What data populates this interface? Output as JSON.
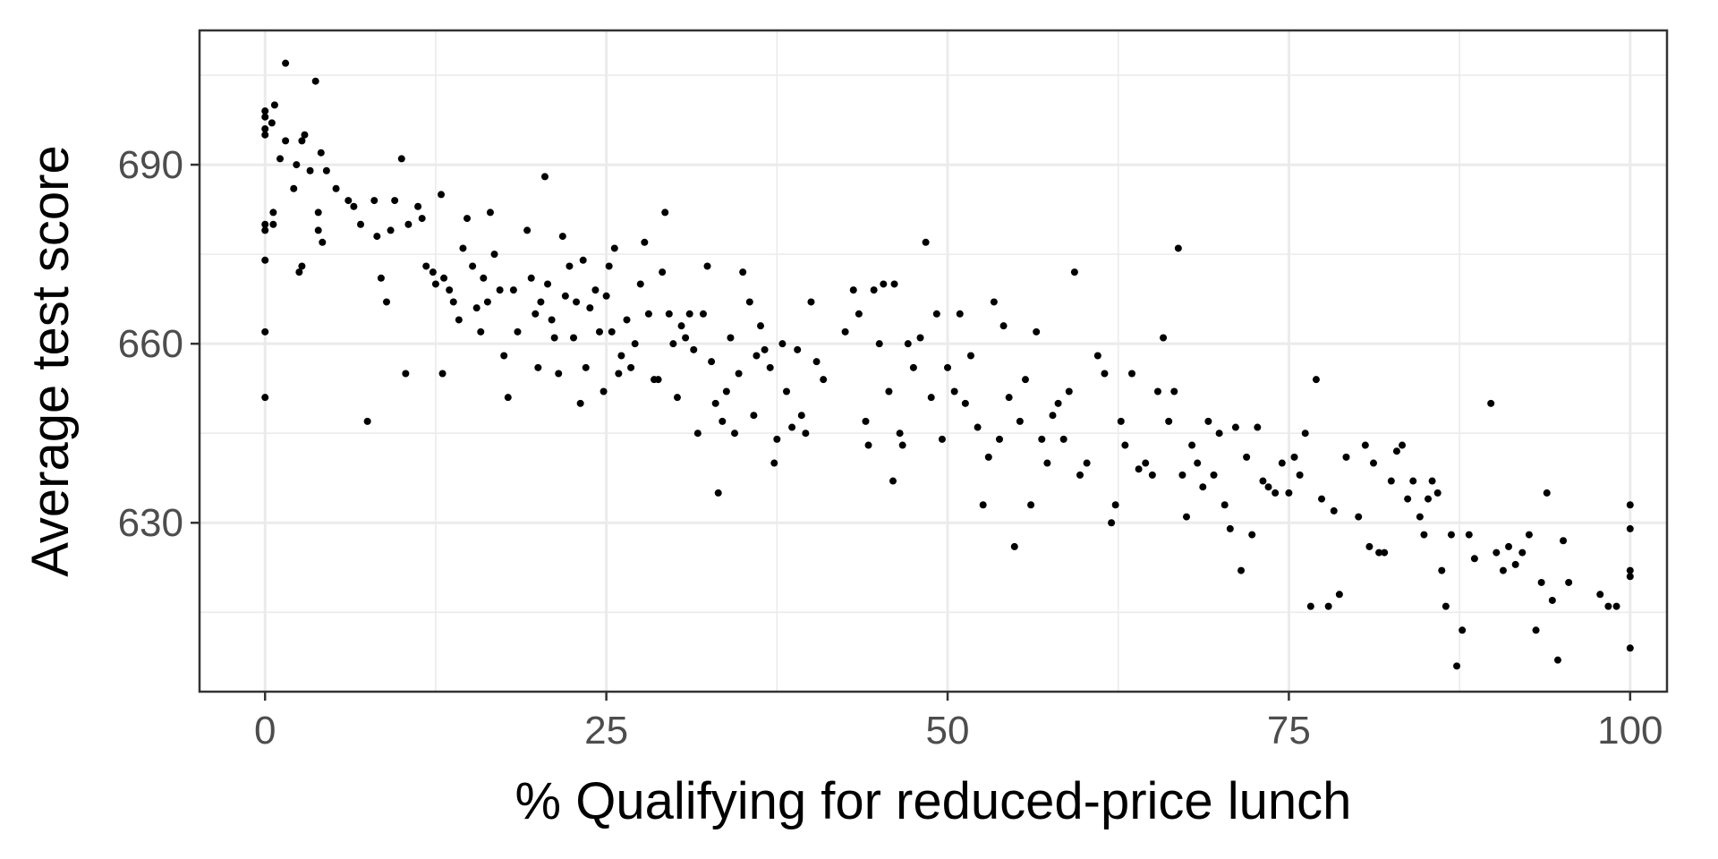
{
  "chart_data": {
    "type": "scatter",
    "title": "",
    "xlabel": "% Qualifying for reduced-price lunch",
    "ylabel": "Average test score",
    "xlim": [
      -4.8,
      102.7
    ],
    "ylim": [
      601.7,
      712.5
    ],
    "x_ticks": [
      0,
      25,
      50,
      75,
      100
    ],
    "x_tick_labels": [
      "0",
      "25",
      "50",
      "75",
      "100"
    ],
    "y_ticks": [
      630,
      660,
      690
    ],
    "y_tick_labels": [
      "630",
      "660",
      "690"
    ],
    "grid": true,
    "legend": "none",
    "colors": {
      "points": "#000000",
      "grid": "#ebebeb",
      "panel_border": "#333333"
    },
    "points": [
      [
        0,
        699
      ],
      [
        0,
        698
      ],
      [
        0,
        696
      ],
      [
        0,
        695
      ],
      [
        0,
        680
      ],
      [
        0,
        679
      ],
      [
        0,
        674
      ],
      [
        0,
        662
      ],
      [
        0,
        651
      ],
      [
        0.5,
        697
      ],
      [
        0.7,
        700
      ],
      [
        0.6,
        682
      ],
      [
        0.6,
        680
      ],
      [
        1.1,
        691
      ],
      [
        1.5,
        707
      ],
      [
        1.5,
        694
      ],
      [
        2.1,
        686
      ],
      [
        2.3,
        690
      ],
      [
        2.5,
        672
      ],
      [
        2.7,
        673
      ],
      [
        2.7,
        694
      ],
      [
        2.9,
        695
      ],
      [
        3.3,
        689
      ],
      [
        3.7,
        704
      ],
      [
        3.9,
        682
      ],
      [
        3.9,
        679
      ],
      [
        4.1,
        692
      ],
      [
        4.2,
        677
      ],
      [
        4.5,
        689
      ],
      [
        5.2,
        686
      ],
      [
        6.1,
        684
      ],
      [
        6.5,
        683
      ],
      [
        7,
        680
      ],
      [
        7.5,
        647
      ],
      [
        8,
        684
      ],
      [
        8.2,
        678
      ],
      [
        8.5,
        671
      ],
      [
        8.9,
        667
      ],
      [
        9.2,
        679
      ],
      [
        9.5,
        684
      ],
      [
        10,
        691
      ],
      [
        10.3,
        655
      ],
      [
        10.5,
        680
      ],
      [
        11.2,
        683
      ],
      [
        11.5,
        681
      ],
      [
        11.8,
        673
      ],
      [
        12.3,
        672
      ],
      [
        12.5,
        670
      ],
      [
        12.9,
        685
      ],
      [
        13,
        655
      ],
      [
        13.1,
        671
      ],
      [
        13.5,
        669
      ],
      [
        13.8,
        667
      ],
      [
        14.2,
        664
      ],
      [
        14.5,
        676
      ],
      [
        14.8,
        681
      ],
      [
        15.2,
        673
      ],
      [
        15.5,
        666
      ],
      [
        15.8,
        662
      ],
      [
        16,
        671
      ],
      [
        16.3,
        667
      ],
      [
        16.5,
        682
      ],
      [
        16.8,
        675
      ],
      [
        17.2,
        669
      ],
      [
        17.5,
        658
      ],
      [
        17.8,
        651
      ],
      [
        18.2,
        669
      ],
      [
        18.5,
        662
      ],
      [
        19.2,
        679
      ],
      [
        19.5,
        671
      ],
      [
        19.8,
        665
      ],
      [
        20,
        656
      ],
      [
        20.2,
        667
      ],
      [
        20.5,
        688
      ],
      [
        20.7,
        670
      ],
      [
        21,
        664
      ],
      [
        21.2,
        661
      ],
      [
        21.5,
        655
      ],
      [
        21.8,
        678
      ],
      [
        22,
        668
      ],
      [
        22.3,
        673
      ],
      [
        22.6,
        661
      ],
      [
        22.8,
        667
      ],
      [
        23.1,
        650
      ],
      [
        23.3,
        674
      ],
      [
        23.5,
        656
      ],
      [
        23.8,
        666
      ],
      [
        24.2,
        669
      ],
      [
        24.5,
        662
      ],
      [
        24.8,
        652
      ],
      [
        25,
        668
      ],
      [
        25.2,
        673
      ],
      [
        25.4,
        662
      ],
      [
        25.6,
        676
      ],
      [
        25.9,
        655
      ],
      [
        26.1,
        658
      ],
      [
        26.5,
        664
      ],
      [
        26.8,
        656
      ],
      [
        27.1,
        660
      ],
      [
        27.5,
        670
      ],
      [
        27.8,
        677
      ],
      [
        28.1,
        665
      ],
      [
        28.5,
        654
      ],
      [
        28.8,
        654
      ],
      [
        29.1,
        672
      ],
      [
        29.3,
        682
      ],
      [
        29.6,
        665
      ],
      [
        29.9,
        660
      ],
      [
        30.2,
        651
      ],
      [
        30.5,
        663
      ],
      [
        30.8,
        661
      ],
      [
        31.1,
        665
      ],
      [
        31.4,
        659
      ],
      [
        31.7,
        645
      ],
      [
        32.1,
        665
      ],
      [
        32.4,
        673
      ],
      [
        32.7,
        657
      ],
      [
        33,
        650
      ],
      [
        33.2,
        635
      ],
      [
        33.5,
        647
      ],
      [
        33.8,
        652
      ],
      [
        34.1,
        661
      ],
      [
        34.4,
        645
      ],
      [
        34.7,
        655
      ],
      [
        35,
        672
      ],
      [
        35.5,
        667
      ],
      [
        35.8,
        648
      ],
      [
        36,
        658
      ],
      [
        36.3,
        663
      ],
      [
        36.6,
        659
      ],
      [
        37,
        656
      ],
      [
        37.3,
        640
      ],
      [
        37.5,
        644
      ],
      [
        37.9,
        660
      ],
      [
        38.2,
        652
      ],
      [
        38.6,
        646
      ],
      [
        39,
        659
      ],
      [
        39.3,
        648
      ],
      [
        39.6,
        645
      ],
      [
        40,
        667
      ],
      [
        40.4,
        657
      ],
      [
        40.9,
        654
      ],
      [
        42.5,
        662
      ],
      [
        43.1,
        669
      ],
      [
        43.5,
        665
      ],
      [
        44,
        647
      ],
      [
        44.2,
        643
      ],
      [
        44.6,
        669
      ],
      [
        45,
        660
      ],
      [
        45.3,
        670
      ],
      [
        45.7,
        652
      ],
      [
        46,
        637
      ],
      [
        46.1,
        670
      ],
      [
        46.5,
        645
      ],
      [
        46.7,
        643
      ],
      [
        47.1,
        660
      ],
      [
        47.5,
        656
      ],
      [
        48,
        661
      ],
      [
        48.4,
        677
      ],
      [
        48.8,
        651
      ],
      [
        49.2,
        665
      ],
      [
        49.6,
        644
      ],
      [
        50,
        656
      ],
      [
        50.5,
        652
      ],
      [
        50.9,
        665
      ],
      [
        51.3,
        650
      ],
      [
        51.7,
        658
      ],
      [
        52.2,
        646
      ],
      [
        52.6,
        633
      ],
      [
        53,
        641
      ],
      [
        53.4,
        667
      ],
      [
        53.8,
        644
      ],
      [
        54.1,
        663
      ],
      [
        54.5,
        651
      ],
      [
        54.9,
        626
      ],
      [
        55.3,
        647
      ],
      [
        55.7,
        654
      ],
      [
        56.1,
        633
      ],
      [
        56.5,
        662
      ],
      [
        56.9,
        644
      ],
      [
        57.3,
        640
      ],
      [
        57.7,
        648
      ],
      [
        58.1,
        650
      ],
      [
        58.5,
        644
      ],
      [
        58.9,
        652
      ],
      [
        59.3,
        672
      ],
      [
        59.7,
        638
      ],
      [
        60.2,
        640
      ],
      [
        61,
        658
      ],
      [
        61.5,
        655
      ],
      [
        62,
        630
      ],
      [
        62.3,
        633
      ],
      [
        62.7,
        647
      ],
      [
        63,
        643
      ],
      [
        63.5,
        655
      ],
      [
        64,
        639
      ],
      [
        64.5,
        640
      ],
      [
        65,
        638
      ],
      [
        65.4,
        652
      ],
      [
        65.8,
        661
      ],
      [
        66.2,
        647
      ],
      [
        66.6,
        652
      ],
      [
        66.9,
        676
      ],
      [
        67.2,
        638
      ],
      [
        67.5,
        631
      ],
      [
        67.9,
        643
      ],
      [
        68.3,
        640
      ],
      [
        68.7,
        636
      ],
      [
        69.1,
        647
      ],
      [
        69.5,
        638
      ],
      [
        69.9,
        645
      ],
      [
        70.3,
        633
      ],
      [
        70.7,
        629
      ],
      [
        71.1,
        646
      ],
      [
        71.5,
        622
      ],
      [
        71.9,
        641
      ],
      [
        72.3,
        628
      ],
      [
        72.7,
        646
      ],
      [
        73.1,
        637
      ],
      [
        73.5,
        636
      ],
      [
        74,
        635
      ],
      [
        74.5,
        640
      ],
      [
        75,
        635
      ],
      [
        75.4,
        641
      ],
      [
        75.8,
        638
      ],
      [
        76.2,
        645
      ],
      [
        76.6,
        616
      ],
      [
        77,
        654
      ],
      [
        77.4,
        634
      ],
      [
        77.9,
        616
      ],
      [
        78.3,
        632
      ],
      [
        78.7,
        618
      ],
      [
        79.2,
        641
      ],
      [
        80.1,
        631
      ],
      [
        80.6,
        643
      ],
      [
        80.9,
        626
      ],
      [
        81.2,
        640
      ],
      [
        81.6,
        625
      ],
      [
        82,
        625
      ],
      [
        82.5,
        637
      ],
      [
        82.9,
        642
      ],
      [
        83.3,
        643
      ],
      [
        83.7,
        634
      ],
      [
        84.1,
        637
      ],
      [
        84.6,
        631
      ],
      [
        84.9,
        628
      ],
      [
        85.2,
        634
      ],
      [
        85.5,
        637
      ],
      [
        85.9,
        635
      ],
      [
        86.2,
        622
      ],
      [
        86.5,
        616
      ],
      [
        86.9,
        628
      ],
      [
        87.3,
        606
      ],
      [
        87.7,
        612
      ],
      [
        88.2,
        628
      ],
      [
        88.6,
        624
      ],
      [
        89.8,
        650
      ],
      [
        90.2,
        625
      ],
      [
        90.7,
        622
      ],
      [
        91.1,
        626
      ],
      [
        91.6,
        623
      ],
      [
        92.1,
        625
      ],
      [
        92.6,
        628
      ],
      [
        93.1,
        612
      ],
      [
        93.5,
        620
      ],
      [
        93.9,
        635
      ],
      [
        94.3,
        617
      ],
      [
        94.7,
        607
      ],
      [
        95.1,
        627
      ],
      [
        95.5,
        620
      ],
      [
        97.8,
        618
      ],
      [
        98.4,
        616
      ],
      [
        99,
        616
      ],
      [
        100,
        633
      ],
      [
        100,
        629
      ],
      [
        100,
        622
      ],
      [
        100,
        621
      ],
      [
        100,
        609
      ]
    ]
  }
}
